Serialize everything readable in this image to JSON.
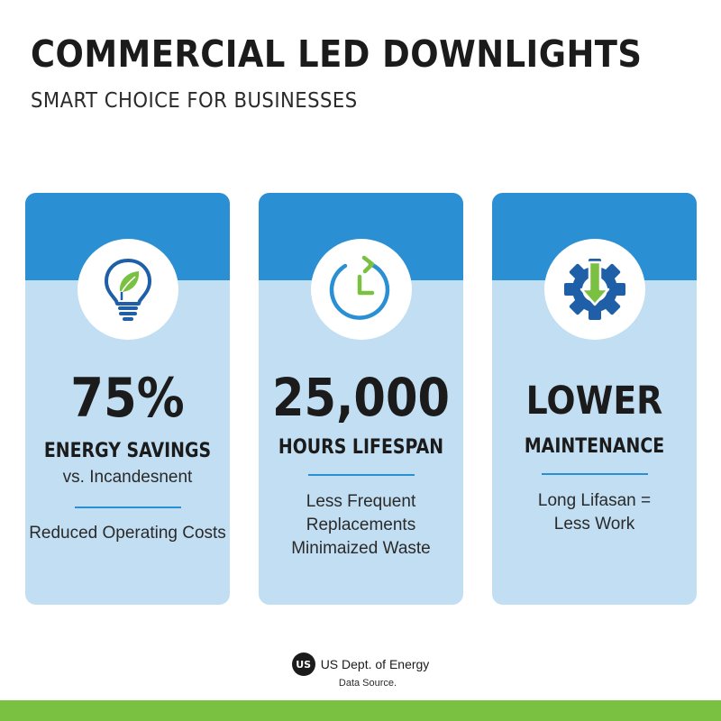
{
  "header": {
    "title": "COMMERCIAL LED DOWNLIGHTS",
    "subtitle": "SMART CHOICE FOR BUSINESSES"
  },
  "colors": {
    "header_blue": "#2b8fd4",
    "card_light_blue": "#c2def2",
    "accent_green": "#7ac142",
    "icon_dark_blue": "#1f5fa8",
    "text_dark": "#1b1b1b"
  },
  "cards": [
    {
      "icon": "lightbulb-leaf-icon",
      "big": "75%",
      "label": "ENERGY SAVINGS",
      "note": "vs. Incandesnent",
      "lines": [
        "Reduced Operating Costs"
      ]
    },
    {
      "icon": "clock-refresh-icon",
      "big": "25,000",
      "label": "HOURS LIFESPAN",
      "lines": [
        "Less Frequent",
        "Replacements",
        "Minimaized Waste"
      ]
    },
    {
      "icon": "gear-down-arrow-icon",
      "big": "LOWER",
      "label": "MAINTENANCE",
      "lines": [
        "Long Lifasan =",
        "Less Work"
      ]
    }
  ],
  "footer": {
    "logo_text": "US",
    "name": "US Dept. of Energy",
    "note": "Data Source."
  }
}
